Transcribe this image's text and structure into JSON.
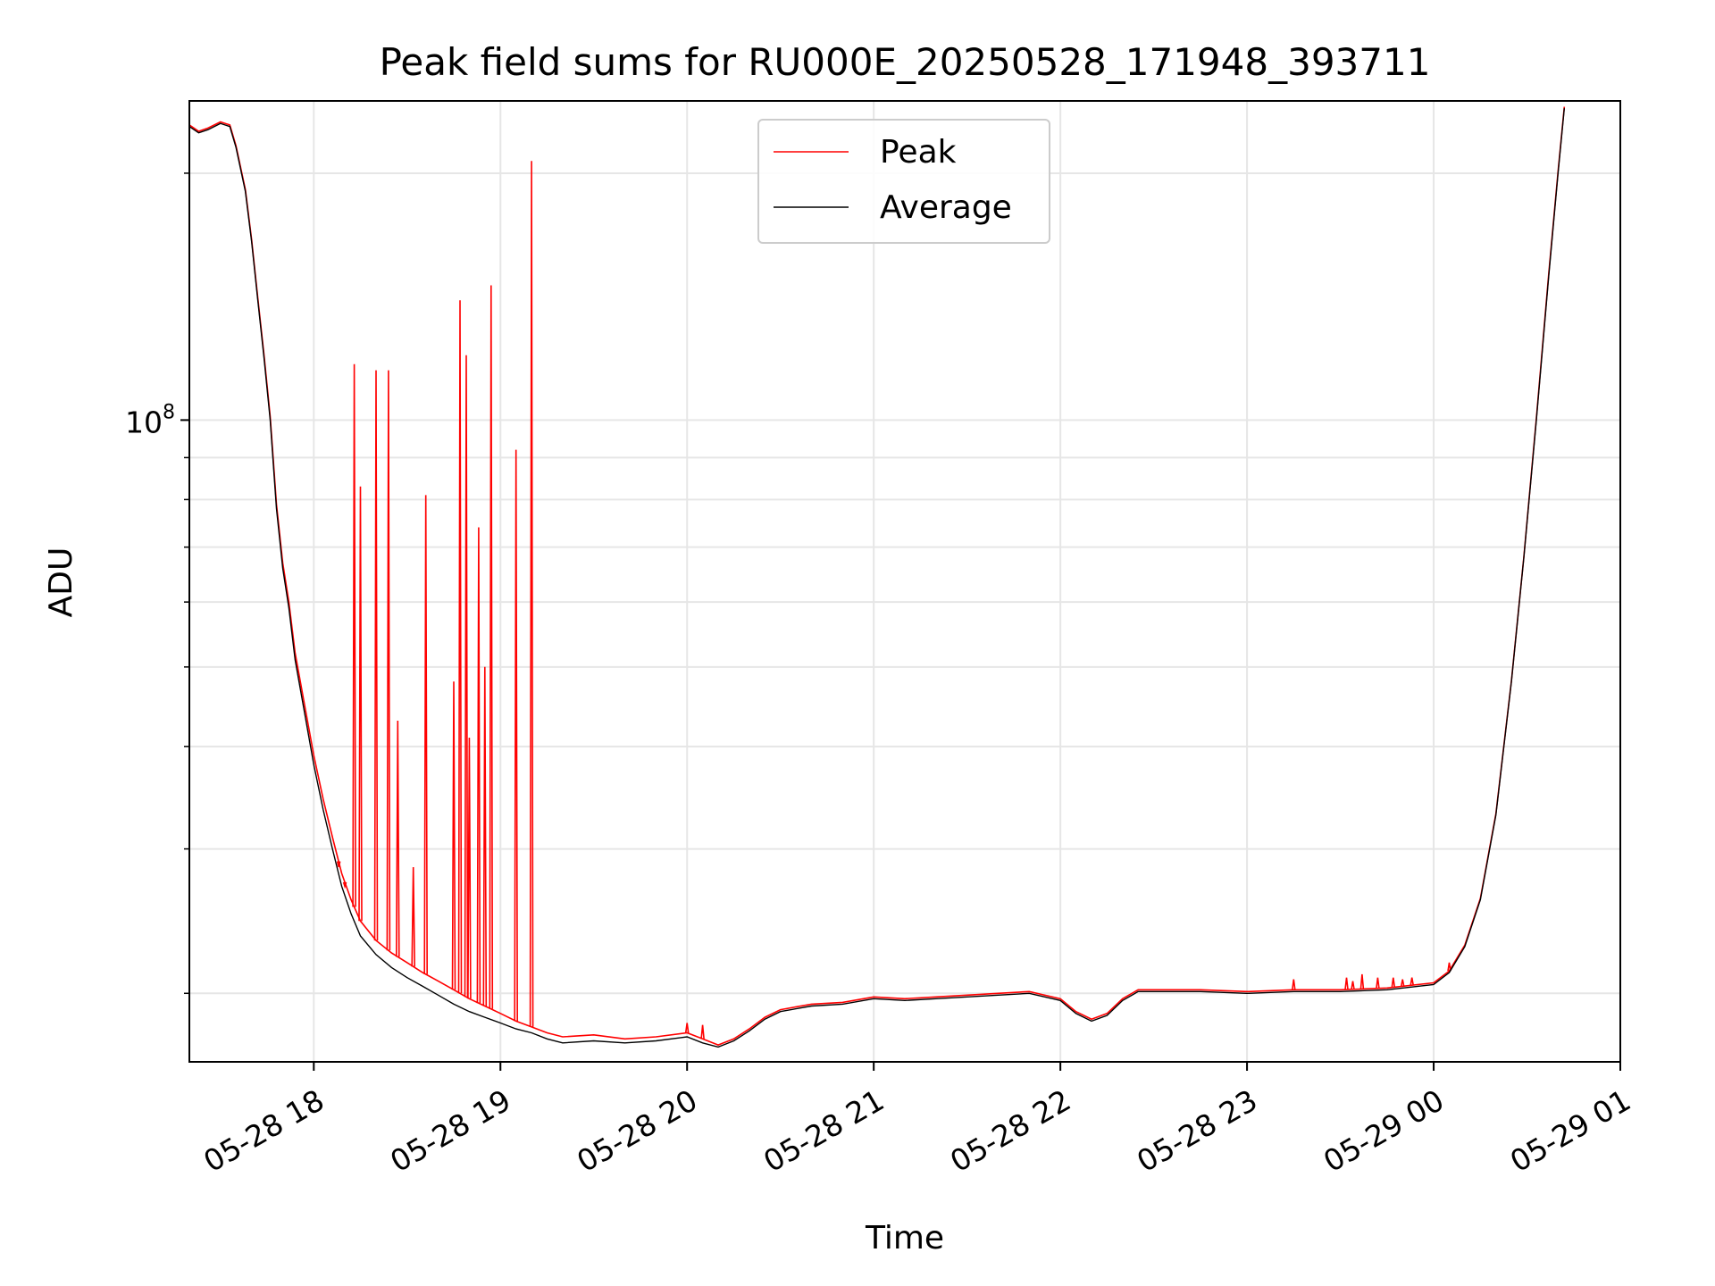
{
  "chart_data": {
    "type": "line",
    "title": "Peak field sums for RU000E_20250528_171948_393711",
    "xlabel": "Time",
    "ylabel": "ADU",
    "yscale": "log",
    "xlim": [
      "2025-05-28 17:20",
      "2025-05-29 01:00"
    ],
    "ylim": [
      16500000,
      245000000
    ],
    "grid": true,
    "legend_position": "top-center",
    "x_ticks": [
      {
        "t": "2025-05-28 18:00",
        "label": "05-28 18"
      },
      {
        "t": "2025-05-28 19:00",
        "label": "05-28 19"
      },
      {
        "t": "2025-05-28 20:00",
        "label": "05-28 20"
      },
      {
        "t": "2025-05-28 21:00",
        "label": "05-28 21"
      },
      {
        "t": "2025-05-28 22:00",
        "label": "05-28 22"
      },
      {
        "t": "2025-05-28 23:00",
        "label": "05-28 23"
      },
      {
        "t": "2025-05-29 00:00",
        "label": "05-29 00"
      },
      {
        "t": "2025-05-29 01:00",
        "label": "05-29 01"
      }
    ],
    "y_major_ticks": [
      {
        "value": 100000000,
        "label": "10",
        "exponent": "8"
      }
    ],
    "y_minor_ticks": [
      20000000,
      30000000,
      40000000,
      50000000,
      60000000,
      70000000,
      80000000,
      90000000,
      200000000
    ],
    "series": [
      {
        "name": "Average",
        "color": "#000000",
        "points": [
          [
            "2025-05-28 17:20",
            228000000
          ],
          [
            "2025-05-28 17:23",
            224000000
          ],
          [
            "2025-05-28 17:26",
            226000000
          ],
          [
            "2025-05-28 17:30",
            230000000
          ],
          [
            "2025-05-28 17:33",
            228000000
          ],
          [
            "2025-05-28 17:35",
            215000000
          ],
          [
            "2025-05-28 17:38",
            190000000
          ],
          [
            "2025-05-28 17:40",
            165000000
          ],
          [
            "2025-05-28 17:42",
            140000000
          ],
          [
            "2025-05-28 17:44",
            119000000
          ],
          [
            "2025-05-28 17:46",
            100000000
          ],
          [
            "2025-05-28 17:48",
            78000000
          ],
          [
            "2025-05-28 17:50",
            66000000
          ],
          [
            "2025-05-28 17:52",
            59000000
          ],
          [
            "2025-05-28 17:54",
            51000000
          ],
          [
            "2025-05-28 17:57",
            44000000
          ],
          [
            "2025-05-28 18:00",
            38000000
          ],
          [
            "2025-05-28 18:03",
            33500000
          ],
          [
            "2025-05-28 18:06",
            30000000
          ],
          [
            "2025-05-28 18:09",
            27000000
          ],
          [
            "2025-05-28 18:12",
            25000000
          ],
          [
            "2025-05-28 18:15",
            23500000
          ],
          [
            "2025-05-28 18:20",
            22300000
          ],
          [
            "2025-05-28 18:25",
            21500000
          ],
          [
            "2025-05-28 18:30",
            20900000
          ],
          [
            "2025-05-28 18:35",
            20400000
          ],
          [
            "2025-05-28 18:40",
            19900000
          ],
          [
            "2025-05-28 18:45",
            19400000
          ],
          [
            "2025-05-28 18:50",
            19000000
          ],
          [
            "2025-05-28 18:55",
            18700000
          ],
          [
            "2025-05-28 19:00",
            18400000
          ],
          [
            "2025-05-28 19:05",
            18100000
          ],
          [
            "2025-05-28 19:10",
            17900000
          ],
          [
            "2025-05-28 19:15",
            17600000
          ],
          [
            "2025-05-28 19:20",
            17400000
          ],
          [
            "2025-05-28 19:30",
            17500000
          ],
          [
            "2025-05-28 19:40",
            17400000
          ],
          [
            "2025-05-28 19:50",
            17500000
          ],
          [
            "2025-05-28 20:00",
            17700000
          ],
          [
            "2025-05-28 20:05",
            17400000
          ],
          [
            "2025-05-28 20:10",
            17200000
          ],
          [
            "2025-05-28 20:15",
            17500000
          ],
          [
            "2025-05-28 20:20",
            18000000
          ],
          [
            "2025-05-28 20:25",
            18600000
          ],
          [
            "2025-05-28 20:30",
            19000000
          ],
          [
            "2025-05-28 20:40",
            19300000
          ],
          [
            "2025-05-28 20:50",
            19400000
          ],
          [
            "2025-05-28 21:00",
            19700000
          ],
          [
            "2025-05-28 21:10",
            19600000
          ],
          [
            "2025-05-28 21:20",
            19700000
          ],
          [
            "2025-05-28 21:30",
            19800000
          ],
          [
            "2025-05-28 21:40",
            19900000
          ],
          [
            "2025-05-28 21:50",
            20000000
          ],
          [
            "2025-05-28 22:00",
            19600000
          ],
          [
            "2025-05-28 22:05",
            18900000
          ],
          [
            "2025-05-28 22:10",
            18500000
          ],
          [
            "2025-05-28 22:15",
            18800000
          ],
          [
            "2025-05-28 22:20",
            19600000
          ],
          [
            "2025-05-28 22:25",
            20100000
          ],
          [
            "2025-05-28 22:35",
            20100000
          ],
          [
            "2025-05-28 22:45",
            20100000
          ],
          [
            "2025-05-28 23:00",
            20000000
          ],
          [
            "2025-05-28 23:15",
            20100000
          ],
          [
            "2025-05-28 23:30",
            20100000
          ],
          [
            "2025-05-28 23:45",
            20200000
          ],
          [
            "2025-05-29 00:00",
            20500000
          ],
          [
            "2025-05-29 00:05",
            21200000
          ],
          [
            "2025-05-29 00:10",
            22800000
          ],
          [
            "2025-05-29 00:15",
            26000000
          ],
          [
            "2025-05-29 00:20",
            33000000
          ],
          [
            "2025-05-29 00:25",
            48000000
          ],
          [
            "2025-05-29 00:29",
            68000000
          ],
          [
            "2025-05-29 00:33",
            100000000
          ],
          [
            "2025-05-29 00:37",
            150000000
          ],
          [
            "2025-05-29 00:40",
            200000000
          ],
          [
            "2025-05-29 00:42",
            240000000
          ]
        ]
      },
      {
        "name": "Peak",
        "color": "#ff0000",
        "baseline_points": [
          [
            "2025-05-28 17:20",
            229000000
          ],
          [
            "2025-05-28 17:23",
            225000000
          ],
          [
            "2025-05-28 17:26",
            227000000
          ],
          [
            "2025-05-28 17:30",
            231000000
          ],
          [
            "2025-05-28 17:33",
            229000000
          ],
          [
            "2025-05-28 17:35",
            216000000
          ],
          [
            "2025-05-28 17:38",
            191000000
          ],
          [
            "2025-05-28 17:40",
            166000000
          ],
          [
            "2025-05-28 17:42",
            141000000
          ],
          [
            "2025-05-28 17:44",
            120000000
          ],
          [
            "2025-05-28 17:46",
            101000000
          ],
          [
            "2025-05-28 17:48",
            79000000
          ],
          [
            "2025-05-28 17:50",
            67000000
          ],
          [
            "2025-05-28 17:52",
            60000000
          ],
          [
            "2025-05-28 17:54",
            52000000
          ],
          [
            "2025-05-28 17:57",
            45000000
          ],
          [
            "2025-05-28 18:00",
            39000000
          ],
          [
            "2025-05-28 18:03",
            34500000
          ],
          [
            "2025-05-28 18:06",
            31000000
          ],
          [
            "2025-05-28 18:09",
            28000000
          ],
          [
            "2025-05-28 18:12",
            26000000
          ],
          [
            "2025-05-28 18:15",
            24500000
          ],
          [
            "2025-05-28 18:20",
            23200000
          ],
          [
            "2025-05-28 18:25",
            22400000
          ],
          [
            "2025-05-28 18:30",
            21800000
          ],
          [
            "2025-05-28 18:35",
            21200000
          ],
          [
            "2025-05-28 18:40",
            20700000
          ],
          [
            "2025-05-28 18:45",
            20200000
          ],
          [
            "2025-05-28 18:50",
            19700000
          ],
          [
            "2025-05-28 18:55",
            19300000
          ],
          [
            "2025-05-28 19:00",
            18900000
          ],
          [
            "2025-05-28 19:05",
            18500000
          ],
          [
            "2025-05-28 19:10",
            18200000
          ],
          [
            "2025-05-28 19:15",
            17900000
          ],
          [
            "2025-05-28 19:20",
            17700000
          ],
          [
            "2025-05-28 19:30",
            17800000
          ],
          [
            "2025-05-28 19:40",
            17600000
          ],
          [
            "2025-05-28 19:50",
            17700000
          ],
          [
            "2025-05-28 20:00",
            17900000
          ],
          [
            "2025-05-28 20:05",
            17600000
          ],
          [
            "2025-05-28 20:10",
            17300000
          ],
          [
            "2025-05-28 20:15",
            17600000
          ],
          [
            "2025-05-28 20:20",
            18100000
          ],
          [
            "2025-05-28 20:25",
            18700000
          ],
          [
            "2025-05-28 20:30",
            19100000
          ],
          [
            "2025-05-28 20:40",
            19400000
          ],
          [
            "2025-05-28 20:50",
            19500000
          ],
          [
            "2025-05-28 21:00",
            19800000
          ],
          [
            "2025-05-28 21:10",
            19700000
          ],
          [
            "2025-05-28 21:20",
            19800000
          ],
          [
            "2025-05-28 21:30",
            19900000
          ],
          [
            "2025-05-28 21:40",
            20000000
          ],
          [
            "2025-05-28 21:50",
            20100000
          ],
          [
            "2025-05-28 22:00",
            19700000
          ],
          [
            "2025-05-28 22:05",
            19000000
          ],
          [
            "2025-05-28 22:10",
            18600000
          ],
          [
            "2025-05-28 22:15",
            18900000
          ],
          [
            "2025-05-28 22:20",
            19700000
          ],
          [
            "2025-05-28 22:25",
            20200000
          ],
          [
            "2025-05-28 22:35",
            20200000
          ],
          [
            "2025-05-28 22:45",
            20200000
          ],
          [
            "2025-05-28 23:00",
            20100000
          ],
          [
            "2025-05-28 23:15",
            20200000
          ],
          [
            "2025-05-28 23:30",
            20200000
          ],
          [
            "2025-05-28 23:45",
            20300000
          ],
          [
            "2025-05-29 00:00",
            20600000
          ],
          [
            "2025-05-29 00:05",
            21300000
          ],
          [
            "2025-05-29 00:10",
            22900000
          ],
          [
            "2025-05-29 00:15",
            26100000
          ],
          [
            "2025-05-29 00:20",
            33100000
          ],
          [
            "2025-05-29 00:25",
            48100000
          ],
          [
            "2025-05-29 00:29",
            68100000
          ],
          [
            "2025-05-29 00:33",
            100500000
          ],
          [
            "2025-05-29 00:37",
            151000000
          ],
          [
            "2025-05-29 00:40",
            201000000
          ],
          [
            "2025-05-29 00:42",
            241000000
          ]
        ],
        "spikes": [
          [
            "2025-05-28 18:08",
            28500000
          ],
          [
            "2025-05-28 18:10",
            27000000
          ],
          [
            "2025-05-28 18:13",
            117000000
          ],
          [
            "2025-05-28 18:15",
            83000000
          ],
          [
            "2025-05-28 18:20",
            115000000
          ],
          [
            "2025-05-28 18:24",
            115000000
          ],
          [
            "2025-05-28 18:27",
            43000000
          ],
          [
            "2025-05-28 18:32",
            28500000
          ],
          [
            "2025-05-28 18:36",
            81000000
          ],
          [
            "2025-05-28 18:45",
            48000000
          ],
          [
            "2025-05-28 18:47",
            140000000
          ],
          [
            "2025-05-28 18:49",
            120000000
          ],
          [
            "2025-05-28 18:50",
            41000000
          ],
          [
            "2025-05-28 18:53",
            74000000
          ],
          [
            "2025-05-28 18:55",
            50000000
          ],
          [
            "2025-05-28 18:57",
            146000000
          ],
          [
            "2025-05-28 19:05",
            92000000
          ],
          [
            "2025-05-28 19:10",
            207000000
          ],
          [
            "2025-05-28 20:00",
            18400000
          ],
          [
            "2025-05-28 20:05",
            18300000
          ],
          [
            "2025-05-28 23:15",
            20800000
          ],
          [
            "2025-05-28 23:32",
            20900000
          ],
          [
            "2025-05-28 23:34",
            20700000
          ],
          [
            "2025-05-28 23:37",
            21100000
          ],
          [
            "2025-05-28 23:42",
            20900000
          ],
          [
            "2025-05-28 23:47",
            20900000
          ],
          [
            "2025-05-28 23:50",
            20800000
          ],
          [
            "2025-05-28 23:53",
            20900000
          ],
          [
            "2025-05-29 00:05",
            21800000
          ]
        ]
      }
    ]
  }
}
